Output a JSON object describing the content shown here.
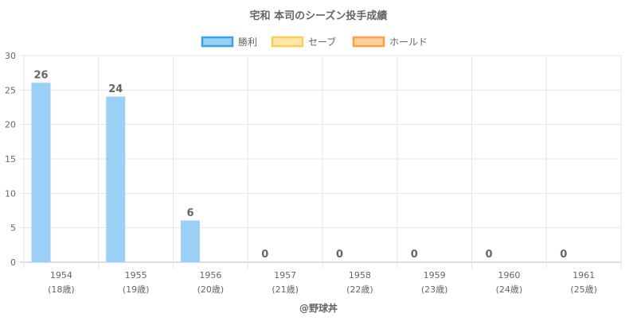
{
  "chart_data": {
    "type": "bar",
    "title": "宅和 本司のシーズン投手成績",
    "categories": [
      "1954",
      "1955",
      "1956",
      "1957",
      "1958",
      "1959",
      "1960",
      "1961"
    ],
    "category_sublabels": [
      "(18歳)",
      "(19歳)",
      "(20歳)",
      "(21歳)",
      "(22歳)",
      "(23歳)",
      "(24歳)",
      "(25歳)"
    ],
    "series": [
      {
        "name": "勝利",
        "values": [
          26,
          24,
          6,
          0,
          0,
          0,
          0,
          0
        ],
        "color": "#36a2eb",
        "fill": "#9ad0f5"
      },
      {
        "name": "セーブ",
        "values": [
          null,
          null,
          null,
          null,
          null,
          null,
          null,
          null
        ],
        "color": "#ffcd56",
        "fill": "#ffe6aa"
      },
      {
        "name": "ホールド",
        "values": [
          null,
          null,
          null,
          null,
          null,
          null,
          null,
          null
        ],
        "color": "#ff9f40",
        "fill": "#ffcf9f"
      }
    ],
    "ylim": [
      0,
      30
    ],
    "yticks": [
      0,
      5,
      10,
      15,
      20,
      25,
      30
    ],
    "grid": true,
    "legend_position": "top",
    "footer": "@野球丼"
  }
}
